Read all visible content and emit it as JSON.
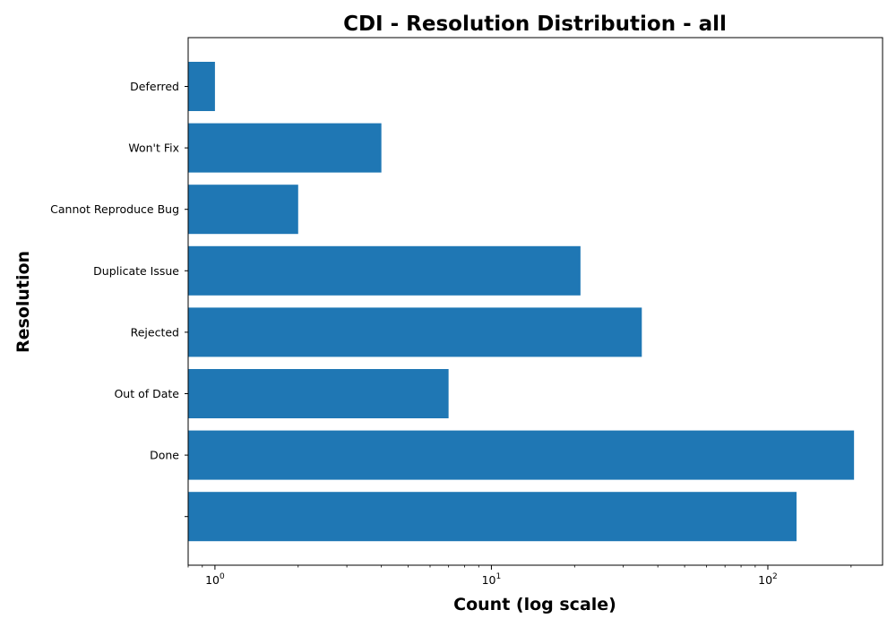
{
  "chart_data": {
    "type": "bar",
    "orientation": "horizontal",
    "title": "CDI - Resolution Distribution - all",
    "xlabel": "Count (log scale)",
    "ylabel": "Resolution",
    "x_scale": "log",
    "xlim": [
      0.8,
      260
    ],
    "x_ticks": [
      {
        "value": 1,
        "base": "10",
        "exp": "0"
      },
      {
        "value": 10,
        "base": "10",
        "exp": "1"
      },
      {
        "value": 100,
        "base": "10",
        "exp": "2"
      }
    ],
    "categories": [
      "Deferred",
      "Won't Fix",
      "Cannot Reproduce Bug",
      "Duplicate Issue",
      "Rejected",
      "Out of Date",
      "Done",
      ""
    ],
    "values": [
      1,
      4,
      2,
      21,
      35,
      7,
      205,
      127
    ],
    "bar_color": "#1f77b4",
    "grid": false,
    "legend": "none"
  }
}
